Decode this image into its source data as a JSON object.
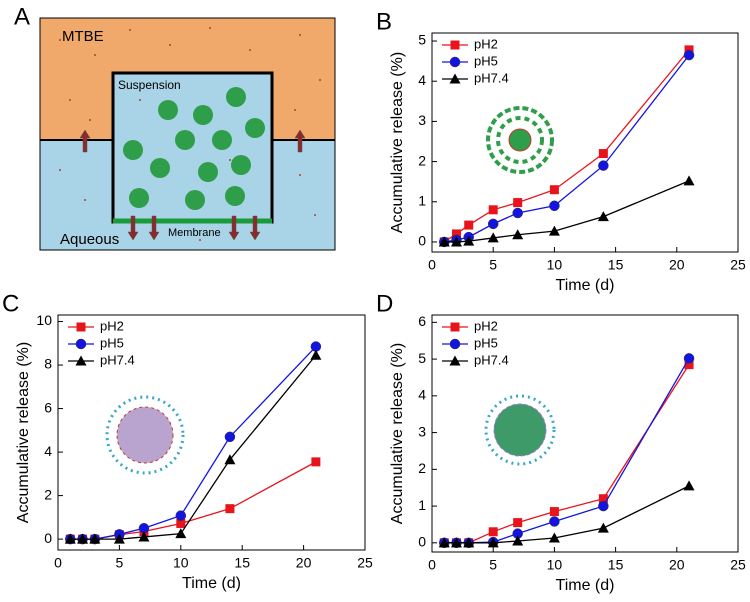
{
  "diagram": {
    "panel_label": "A",
    "top_phase": "MTBE",
    "inner": "Suspension",
    "bottom_phase": "Aqueous",
    "membrane": "Membrane"
  },
  "chart_data": [
    {
      "type": "line",
      "panel_label": "B",
      "xlabel": "Time (d)",
      "ylabel": "Accumulative release (%)",
      "x": [
        1,
        2,
        3,
        5,
        7,
        10,
        14,
        21
      ],
      "xlim": [
        0,
        25
      ],
      "xticks": [
        0,
        5,
        10,
        15,
        20,
        25
      ],
      "ylim": [
        -0.25,
        5.2
      ],
      "yticks": [
        0,
        1,
        2,
        3,
        4,
        5
      ],
      "legend": "top-left",
      "series": [
        {
          "name": "pH2",
          "color": "#e8141b",
          "marker": "square",
          "values": [
            0,
            0.2,
            0.42,
            0.8,
            0.98,
            1.3,
            2.2,
            4.78
          ]
        },
        {
          "name": "pH5",
          "color": "#1414e0",
          "marker": "circle",
          "values": [
            0,
            0.05,
            0.12,
            0.45,
            0.72,
            0.9,
            1.9,
            4.65
          ]
        },
        {
          "name": "pH7.4",
          "color": "#000000",
          "marker": "triangle",
          "values": [
            0,
            0,
            0.02,
            0.1,
            0.18,
            0.27,
            0.63,
            1.52
          ]
        }
      ]
    },
    {
      "type": "line",
      "panel_label": "C",
      "xlabel": "Time (d)",
      "ylabel": "Accumulative release (%)",
      "x": [
        1,
        2,
        3,
        5,
        7,
        10,
        14,
        21
      ],
      "xlim": [
        0,
        25
      ],
      "xticks": [
        0,
        5,
        10,
        15,
        20,
        25
      ],
      "ylim": [
        -0.5,
        10.3
      ],
      "yticks": [
        0,
        2,
        4,
        6,
        8,
        10
      ],
      "legend": "top-left",
      "series": [
        {
          "name": "pH2",
          "color": "#e8141b",
          "marker": "square",
          "values": [
            0,
            0,
            0,
            0.2,
            0.35,
            0.72,
            1.4,
            3.55
          ]
        },
        {
          "name": "pH5",
          "color": "#1414e0",
          "marker": "circle",
          "values": [
            0,
            0,
            0,
            0.22,
            0.5,
            1.08,
            4.7,
            8.85
          ]
        },
        {
          "name": "pH7.4",
          "color": "#000000",
          "marker": "triangle",
          "values": [
            0,
            0,
            0,
            0,
            0.1,
            0.25,
            3.65,
            8.45
          ]
        }
      ]
    },
    {
      "type": "line",
      "panel_label": "D",
      "xlabel": "Time (d)",
      "ylabel": "Accumulative release (%)",
      "x": [
        1,
        2,
        3,
        5,
        7,
        10,
        14,
        21
      ],
      "xlim": [
        0,
        25
      ],
      "xticks": [
        0,
        5,
        10,
        15,
        20,
        25
      ],
      "ylim": [
        -0.25,
        6.2
      ],
      "yticks": [
        0,
        1,
        2,
        3,
        4,
        5,
        6
      ],
      "legend": "top-left",
      "series": [
        {
          "name": "pH2",
          "color": "#e8141b",
          "marker": "square",
          "values": [
            0,
            0,
            0,
            0.3,
            0.55,
            0.85,
            1.2,
            4.85
          ]
        },
        {
          "name": "pH5",
          "color": "#1414e0",
          "marker": "circle",
          "values": [
            0,
            0,
            0,
            0.02,
            0.25,
            0.58,
            1.0,
            5.02
          ]
        },
        {
          "name": "pH7.4",
          "color": "#000000",
          "marker": "triangle",
          "values": [
            0,
            0,
            0,
            0,
            0.05,
            0.13,
            0.4,
            1.55
          ]
        }
      ]
    }
  ]
}
